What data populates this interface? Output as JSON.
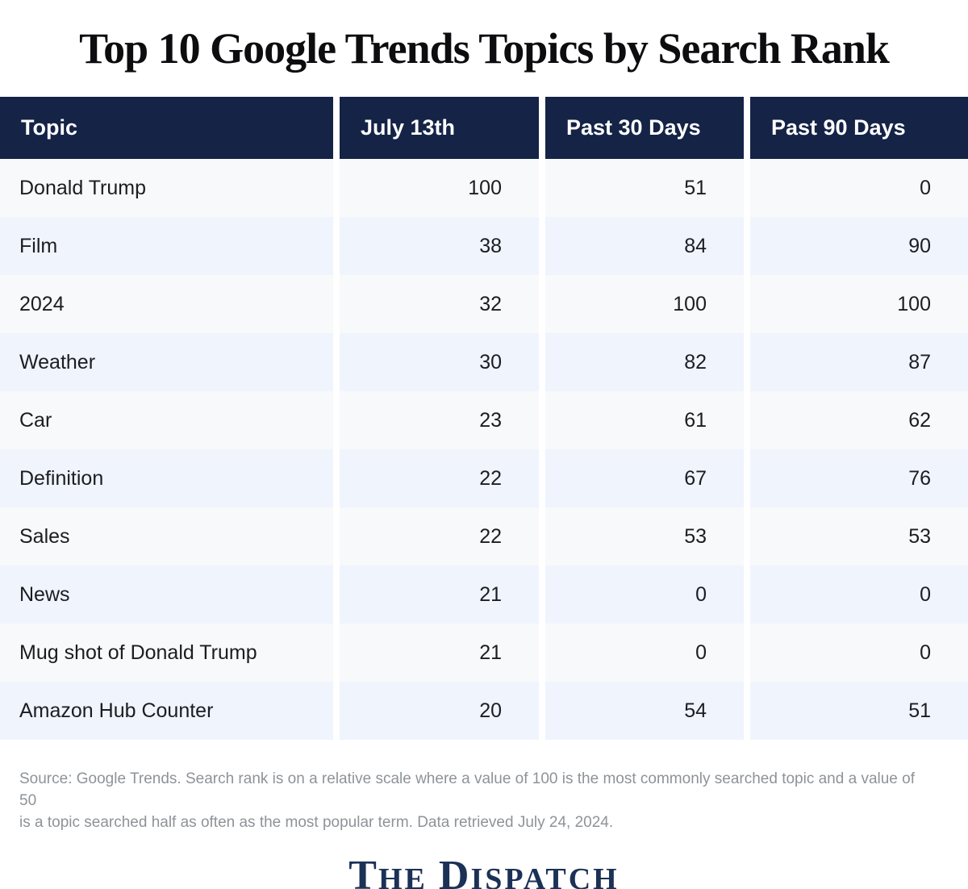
{
  "title": "Top 10 Google Trends Topics by Search Rank",
  "table": {
    "columns": [
      "Topic",
      "July 13th",
      "Past 30 Days",
      "Past 90 Days"
    ],
    "rows": [
      [
        "Donald Trump",
        "100",
        "51",
        "0"
      ],
      [
        "Film",
        "38",
        "84",
        "90"
      ],
      [
        "2024",
        "32",
        "100",
        "100"
      ],
      [
        "Weather",
        "30",
        "82",
        "87"
      ],
      [
        "Car",
        "23",
        "61",
        "62"
      ],
      [
        "Definition",
        "22",
        "67",
        "76"
      ],
      [
        "Sales",
        "22",
        "53",
        "53"
      ],
      [
        "News",
        "21",
        "0",
        "0"
      ],
      [
        "Mug shot of Donald Trump",
        "21",
        "0",
        "0"
      ],
      [
        "Amazon Hub Counter",
        "20",
        "54",
        "51"
      ]
    ]
  },
  "footnote": {
    "line1": "Source: Google Trends. Search rank is on a relative scale where a value of 100 is the most commonly searched topic and a value of 50",
    "line2": "is a topic searched half as often as the most popular term. Data retrieved July 24, 2024."
  },
  "logo": {
    "word1_initial": "T",
    "word1_rest": "HE",
    "word2_initial": "D",
    "word2_rest": "ISPATCH"
  },
  "colors": {
    "header_bg": "#142346",
    "row_stripe_gray": "#f8f9fa",
    "row_stripe_blue": "#eff4fd",
    "footnote_gray": "#8e9398",
    "logo_navy": "#1b3156",
    "title_black": "#0d0d0f"
  },
  "chart_data": {
    "type": "table",
    "title": "Top 10 Google Trends Topics by Search Rank",
    "columns": [
      "Topic",
      "July 13th",
      "Past 30 Days",
      "Past 90 Days"
    ],
    "rows": [
      [
        "Donald Trump",
        100,
        51,
        0
      ],
      [
        "Film",
        38,
        84,
        90
      ],
      [
        "2024",
        32,
        100,
        100
      ],
      [
        "Weather",
        30,
        82,
        87
      ],
      [
        "Car",
        23,
        61,
        62
      ],
      [
        "Definition",
        22,
        67,
        76
      ],
      [
        "Sales",
        22,
        53,
        53
      ],
      [
        "News",
        21,
        0,
        0
      ],
      [
        "Mug shot of Donald Trump",
        21,
        0,
        0
      ],
      [
        "Amazon Hub Counter",
        20,
        54,
        51
      ]
    ],
    "value_scale": [
      0,
      100
    ],
    "source_note": "Source: Google Trends. Search rank is on a relative scale where a value of 100 is the most commonly searched topic and a value of 50 is a topic searched half as often as the most popular term. Data retrieved July 24, 2024.",
    "branding": "The Dispatch"
  }
}
